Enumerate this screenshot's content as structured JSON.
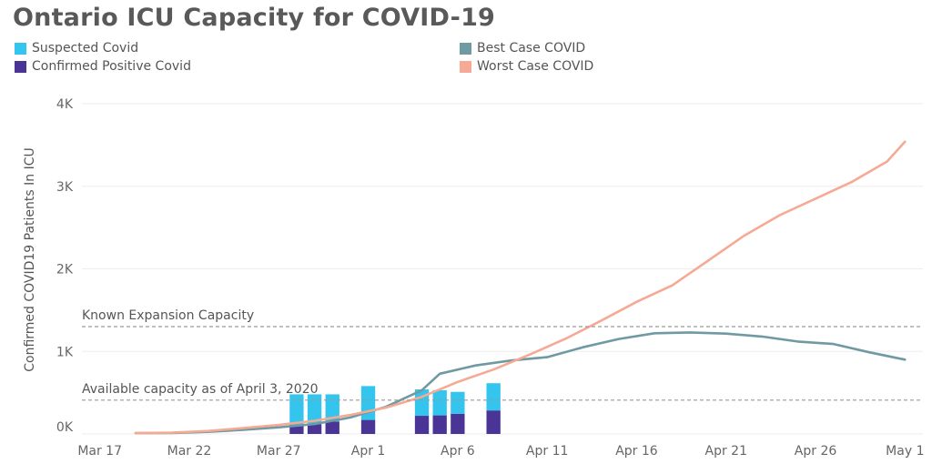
{
  "chart_data": {
    "type": "bar+line",
    "title": "Ontario ICU Capacity for COVID-19",
    "ylabel": "Confirmed COVID19 Patients In ICU",
    "ylim": [
      0,
      4000
    ],
    "y_ticks": [
      0,
      1000,
      2000,
      3000,
      4000
    ],
    "y_tick_labels": [
      "0K",
      "1K",
      "2K",
      "3K",
      "4K"
    ],
    "x_ticks": [
      "2020-03-17",
      "2020-03-22",
      "2020-03-27",
      "2020-04-01",
      "2020-04-06",
      "2020-04-11",
      "2020-04-16",
      "2020-04-21",
      "2020-04-26",
      "2020-05-01"
    ],
    "x_tick_labels": [
      "Mar 17",
      "Mar 22",
      "Mar 27",
      "Apr 1",
      "Apr 6",
      "Apr 11",
      "Apr 16",
      "Apr 21",
      "Apr 26",
      "May 1"
    ],
    "xlim": [
      "2020-03-16",
      "2020-05-02"
    ],
    "legend": [
      {
        "name": "Suspected Covid",
        "color": "#33c5ee"
      },
      {
        "name": "Confirmed Positive Covid",
        "color": "#4a3496"
      },
      {
        "name": "Best Case COVID",
        "color": "#6f9aa2"
      },
      {
        "name": "Worst Case COVID",
        "color": "#f6a994"
      }
    ],
    "bars": {
      "x": [
        "2020-03-28",
        "2020-03-29",
        "2020-03-30",
        "2020-04-01",
        "2020-04-04",
        "2020-04-05",
        "2020-04-06",
        "2020-04-08"
      ],
      "series": [
        {
          "name": "Confirmed Positive Covid",
          "color": "#4a3496",
          "values": [
            110,
            120,
            150,
            170,
            220,
            225,
            245,
            285
          ]
        },
        {
          "name": "Suspected Covid",
          "color": "#33c5ee",
          "values": [
            370,
            360,
            330,
            410,
            320,
            305,
            265,
            330
          ]
        }
      ]
    },
    "lines": [
      {
        "name": "Best Case COVID",
        "color": "#6f9aa2",
        "x": [
          "2020-03-19",
          "2020-03-21",
          "2020-03-23",
          "2020-03-25",
          "2020-03-27",
          "2020-03-29",
          "2020-03-31",
          "2020-04-02",
          "2020-04-04",
          "2020-04-05",
          "2020-04-07",
          "2020-04-09",
          "2020-04-11",
          "2020-04-13",
          "2020-04-15",
          "2020-04-17",
          "2020-04-19",
          "2020-04-21",
          "2020-04-23",
          "2020-04-25",
          "2020-04-27",
          "2020-04-29",
          "2020-05-01"
        ],
        "values": [
          10,
          12,
          25,
          50,
          80,
          120,
          200,
          330,
          530,
          730,
          830,
          890,
          930,
          1050,
          1150,
          1220,
          1230,
          1215,
          1180,
          1120,
          1090,
          990,
          900
        ]
      },
      {
        "name": "Worst Case COVID",
        "color": "#f6a994",
        "x": [
          "2020-03-19",
          "2020-03-21",
          "2020-03-23",
          "2020-03-25",
          "2020-03-27",
          "2020-03-29",
          "2020-03-31",
          "2020-04-02",
          "2020-04-04",
          "2020-04-06",
          "2020-04-08",
          "2020-04-10",
          "2020-04-12",
          "2020-04-14",
          "2020-04-16",
          "2020-04-18",
          "2020-04-20",
          "2020-04-22",
          "2020-04-24",
          "2020-04-26",
          "2020-04-28",
          "2020-04-30",
          "2020-05-01"
        ],
        "values": [
          10,
          15,
          35,
          70,
          110,
          160,
          230,
          320,
          450,
          630,
          780,
          960,
          1150,
          1370,
          1600,
          1800,
          2100,
          2400,
          2650,
          2850,
          3050,
          3300,
          3540
        ]
      }
    ],
    "reference_lines": [
      {
        "label": "Known Expansion Capacity",
        "value": 1300
      },
      {
        "label": "Available capacity as of April 3, 2020",
        "value": 410
      }
    ],
    "legend_position": "top"
  }
}
